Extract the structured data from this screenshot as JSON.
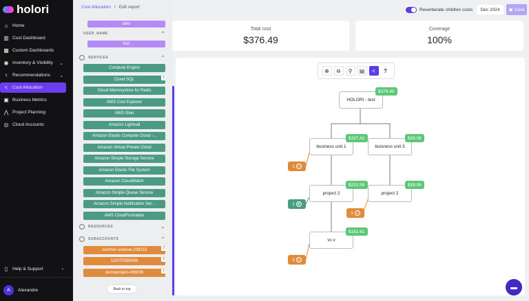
{
  "brand": "holori",
  "nav": [
    {
      "label": "Home",
      "icon": "⌂"
    },
    {
      "label": "Cost Dashboard",
      "icon": "▥"
    },
    {
      "label": "Custom Dashboards",
      "icon": "▦"
    },
    {
      "label": "Inventory & Visibility",
      "icon": "◉"
    },
    {
      "label": "Recommendations",
      "icon": "♀"
    },
    {
      "label": "Cost Allocation",
      "icon": "<"
    },
    {
      "label": "Business Metrics",
      "icon": "▣"
    },
    {
      "label": "Project Planning",
      "icon": "⋀"
    },
    {
      "label": "Cloud Accounts",
      "icon": "◎"
    }
  ],
  "help": "Help & Support",
  "user": {
    "name": "Alexandre",
    "initial": "A"
  },
  "breadcrumb": {
    "parent": "Cost Allocation",
    "current": "Edit report"
  },
  "header": {
    "toggle_label": "Reverberate children costs",
    "toggle_on": true,
    "date": "Dec 2024",
    "save": "Save"
  },
  "panel": {
    "alex": "alex",
    "user_name_label": "USER_NAME",
    "test": "test",
    "services_label": "SERVICES",
    "services": [
      "Compute Engine",
      "Cloud SQL",
      "Cloud Memorystore for Redis",
      "AWS Cost Explorer",
      "AWS Glue",
      "Amazon Lightsail",
      "Amazon Elastic Compute Cloud -...",
      "Amazon Virtual Private Cloud",
      "Amazon Simple Storage Service",
      "Amazon Elastic File System",
      "Amazon CloudWatch",
      "Amazon Simple Queue Service",
      "Amazon Simple Notification Ser...",
      "AWS CloudFormation"
    ],
    "cloud_sql_count": "1",
    "resources_label": "RESOURCES",
    "subaccounts_label": "SUBACCOUNTS",
    "subaccounts": [
      {
        "name": "summer-avenue-299315",
        "count": "2"
      },
      {
        "name": "112070389366",
        "count": "2"
      },
      {
        "name": "demoproject-436008",
        "count": "1"
      }
    ],
    "back_to_top": "Back to top"
  },
  "total_cost": {
    "label": "Total cost",
    "value": "$376.49"
  },
  "coverage": {
    "label": "Coverage",
    "value": "100%"
  },
  "tree": {
    "root": {
      "name": "HOLORI - test",
      "cost": "$376.49"
    },
    "bu1": {
      "name": "business unit 1",
      "cost": "$337.42"
    },
    "bu3": {
      "name": "buisness unit 3",
      "cost": "$39.06"
    },
    "p2a": {
      "name": "project 2",
      "cost": "$222.59"
    },
    "p2b": {
      "name": "project 2",
      "cost": "$39.06"
    },
    "vcv": {
      "name": "vc v",
      "cost": "$162.61"
    },
    "pills": [
      "1",
      "1",
      "1",
      "3"
    ]
  },
  "colors": {
    "accent": "#5b3ee8",
    "service": "#4a9b82",
    "subaccount": "#e08a3c",
    "cost_badge": "#5cc877",
    "tag": "#b48af5"
  }
}
